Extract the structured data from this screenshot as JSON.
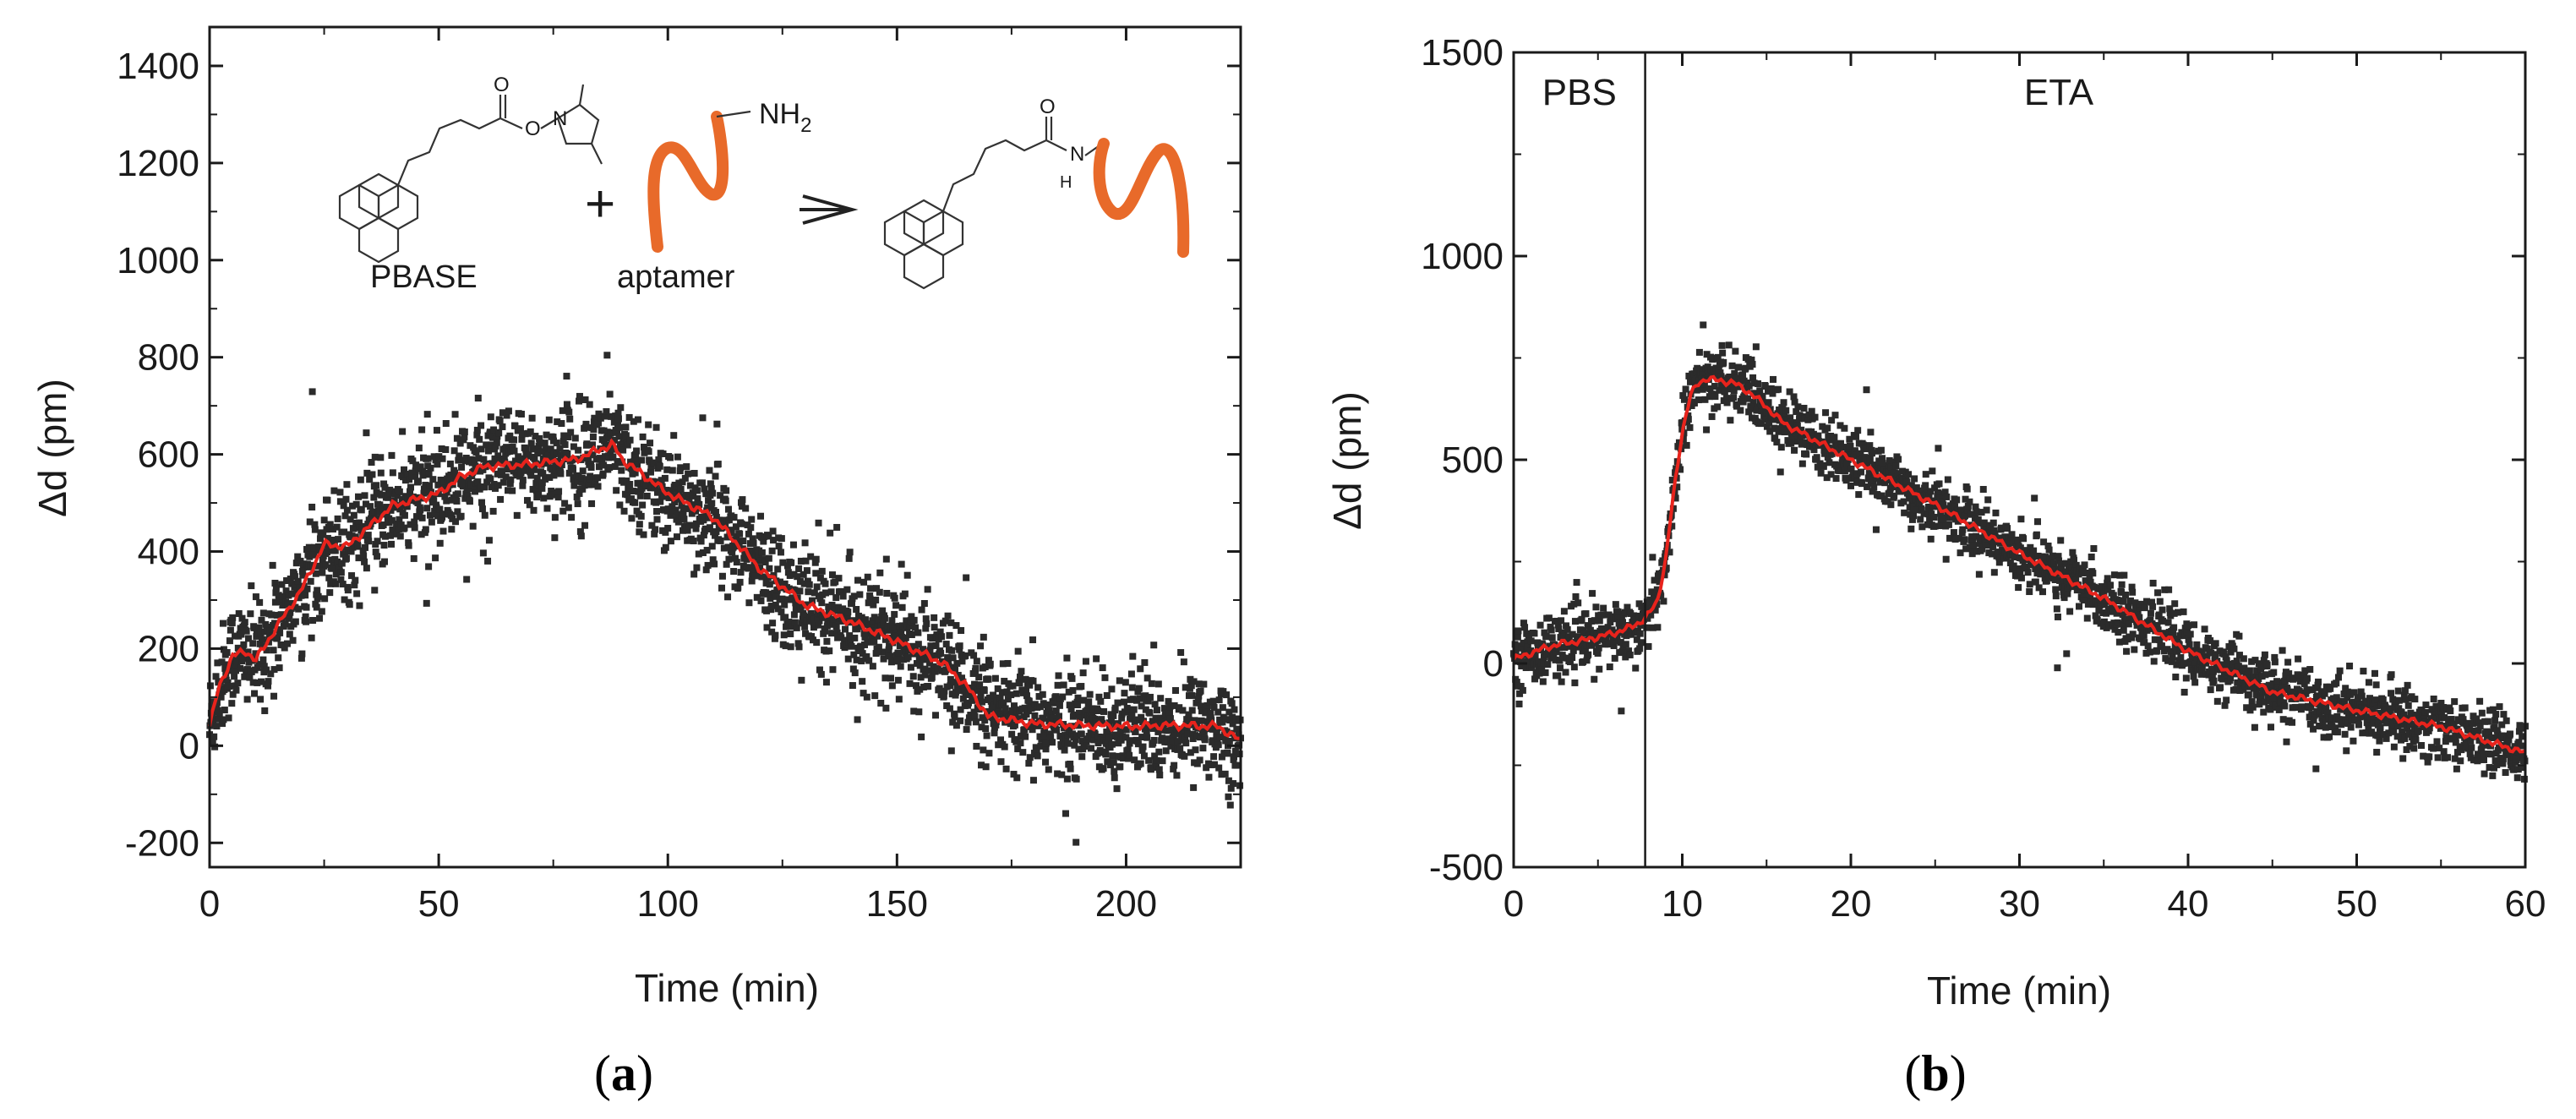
{
  "colors": {
    "points": "#2b2b2b",
    "fit": "#e8231c",
    "aptamer": "#e86a2a",
    "axis": "#1a1a1a"
  },
  "chart_data": [
    {
      "type": "scatter",
      "panel": "a",
      "panel_tag": {
        "open": "(",
        "letter": "a",
        "close": ")"
      },
      "xlabel": "Time (min)",
      "ylabel": "Δd (pm)",
      "xlim": [
        0,
        225
      ],
      "ylim": [
        -250,
        1480
      ],
      "xticks": [
        0,
        50,
        100,
        150,
        200
      ],
      "yticks": [
        -200,
        0,
        200,
        400,
        600,
        800,
        1000,
        1200,
        1400
      ],
      "series": [
        {
          "name": "measured",
          "style": "points",
          "noise_pm": 55,
          "x": [
            0,
            2,
            5,
            8,
            10,
            15,
            20,
            25,
            30,
            40,
            50,
            55,
            60,
            70,
            80,
            85,
            88,
            90,
            95,
            100,
            110,
            120,
            130,
            140,
            150,
            160,
            165,
            170,
            180,
            190,
            200,
            210,
            220,
            225
          ],
          "y": [
            40,
            120,
            185,
            195,
            175,
            250,
            320,
            415,
            410,
            495,
            520,
            555,
            575,
            580,
            590,
            610,
            620,
            590,
            555,
            520,
            470,
            365,
            290,
            255,
            215,
            170,
            125,
            60,
            45,
            42,
            40,
            42,
            40,
            10
          ]
        },
        {
          "name": "smoothed",
          "style": "line",
          "x": [
            0,
            2,
            5,
            8,
            10,
            15,
            20,
            25,
            30,
            40,
            50,
            55,
            60,
            70,
            80,
            85,
            88,
            90,
            95,
            100,
            110,
            120,
            130,
            140,
            150,
            160,
            165,
            170,
            180,
            190,
            200,
            210,
            220,
            225
          ],
          "y": [
            40,
            120,
            185,
            195,
            175,
            250,
            320,
            415,
            410,
            495,
            520,
            555,
            575,
            580,
            590,
            610,
            620,
            590,
            555,
            520,
            470,
            365,
            290,
            255,
            215,
            170,
            125,
            60,
            45,
            42,
            40,
            42,
            40,
            10
          ]
        }
      ],
      "annotations": {
        "pbase": "PBASE",
        "aptamer": "aptamer",
        "plus": "+",
        "arrow": "→",
        "amine": "NH",
        "amine_sub": "2",
        "carbonyl_o": "O",
        "ester_o": "O",
        "imide_n": "N",
        "amide_n": "N",
        "amide_h": "H"
      }
    },
    {
      "type": "scatter",
      "panel": "b",
      "panel_tag": {
        "open": "(",
        "letter": "b",
        "close": ")"
      },
      "xlabel": "Time (min)",
      "ylabel": "Δd (pm)",
      "xlim": [
        0,
        60
      ],
      "ylim": [
        -500,
        1500
      ],
      "xticks": [
        0,
        10,
        20,
        30,
        40,
        50,
        60
      ],
      "yticks": [
        -500,
        0,
        500,
        1000,
        1500
      ],
      "divider_x": 7.8,
      "regions": [
        "PBS",
        "ETA"
      ],
      "series": [
        {
          "name": "measured",
          "style": "points",
          "noise_pm": 38,
          "x": [
            0,
            1,
            2,
            3,
            4,
            5,
            6,
            7,
            7.8,
            8.5,
            9,
            9.5,
            10,
            10.5,
            11,
            11.5,
            12,
            13,
            14,
            15,
            16,
            18,
            20,
            25,
            30,
            35,
            40,
            45,
            50,
            55,
            60
          ],
          "y": [
            10,
            25,
            40,
            50,
            55,
            65,
            75,
            90,
            110,
            150,
            250,
            420,
            570,
            660,
            690,
            700,
            695,
            690,
            665,
            630,
            590,
            545,
            500,
            390,
            270,
            160,
            30,
            -70,
            -115,
            -155,
            -220
          ]
        },
        {
          "name": "smoothed",
          "style": "line",
          "x": [
            0,
            1,
            2,
            3,
            4,
            5,
            6,
            7,
            7.8,
            8.5,
            9,
            9.5,
            10,
            10.5,
            11,
            11.5,
            12,
            13,
            14,
            15,
            16,
            18,
            20,
            25,
            30,
            35,
            40,
            45,
            50,
            55,
            60
          ],
          "y": [
            10,
            25,
            40,
            50,
            55,
            65,
            75,
            90,
            110,
            150,
            250,
            420,
            570,
            660,
            690,
            700,
            695,
            690,
            665,
            630,
            590,
            545,
            500,
            390,
            270,
            160,
            30,
            -70,
            -115,
            -155,
            -220
          ]
        }
      ]
    }
  ]
}
